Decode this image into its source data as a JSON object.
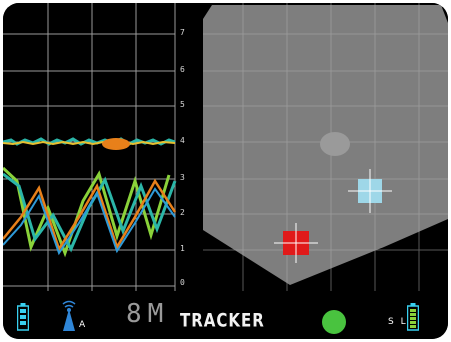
{
  "depth_scale": {
    "labels": [
      "7",
      "6",
      "5",
      "4",
      "3",
      "2",
      "1",
      "0"
    ]
  },
  "status_bar": {
    "range_value": "8M",
    "mode": "TRACKER",
    "antenna_label": "A",
    "sl_label": "S L",
    "status_color": "#49c33f",
    "battery_color": "#39d0f0",
    "signal_color": "#2f86d8"
  },
  "targets": [
    {
      "name": "target-red",
      "color": "#e01a1a"
    },
    {
      "name": "target-light-blue",
      "color": "#9ed7e8"
    }
  ],
  "trace_colors": {
    "orange": "#e8801a",
    "teal": "#2bb6a8",
    "green": "#8ad23a",
    "blue": "#2f9ad8"
  }
}
